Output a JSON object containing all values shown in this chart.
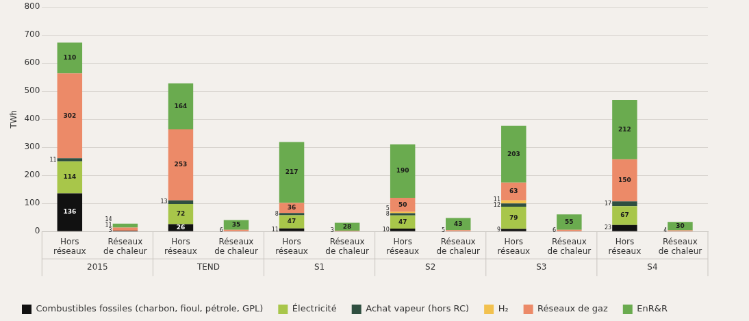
{
  "chart_data": {
    "type": "bar",
    "stacked": true,
    "ylabel": "TWh",
    "ylim": [
      0,
      800
    ],
    "yticks": [
      0,
      100,
      200,
      300,
      400,
      500,
      600,
      700,
      800
    ],
    "grid": "y",
    "legend": "bottom",
    "data_labels": true,
    "categories": [
      "Hors réseaux",
      "Réseaux de chaleur",
      "Hors réseaux",
      "Réseaux de chaleur",
      "Hors réseaux",
      "Réseaux de chaleur",
      "Hors réseaux",
      "Réseaux de chaleur",
      "Hors réseaux",
      "Réseaux de chaleur",
      "Hors réseaux",
      "Réseaux de chaleur"
    ],
    "annotations": [
      "2015",
      "TEND",
      "S1",
      "S2",
      "S3",
      "S4"
    ],
    "series": [
      {
        "name": "Combustibles fossiles (charbon, fioul, pétrole, GPL)",
        "color": "#111111",
        "values": [
          136,
          3,
          26,
          null,
          11,
          null,
          10,
          null,
          9,
          null,
          23,
          null
        ]
      },
      {
        "name": "Électricité",
        "color": "#a8c64a",
        "values": [
          114,
          null,
          72,
          null,
          47,
          null,
          47,
          null,
          79,
          null,
          67,
          null
        ]
      },
      {
        "name": "Achat vapeur (hors RC)",
        "color": "#2f4f40",
        "values": [
          11,
          null,
          13,
          null,
          8,
          null,
          8,
          null,
          12,
          null,
          17,
          null
        ]
      },
      {
        "name": "H₂",
        "color": "#f2c14e",
        "values": [
          null,
          null,
          null,
          null,
          null,
          null,
          5,
          null,
          11,
          null,
          null,
          null
        ]
      },
      {
        "name": "Réseaux de gaz",
        "color": "#ec8a68",
        "values": [
          302,
          11,
          253,
          6,
          36,
          3,
          50,
          5,
          63,
          6,
          150,
          4
        ]
      },
      {
        "name": "EnR&R",
        "color": "#6aab4f",
        "values": [
          110,
          14,
          164,
          35,
          217,
          28,
          190,
          43,
          203,
          55,
          212,
          30
        ]
      }
    ]
  }
}
